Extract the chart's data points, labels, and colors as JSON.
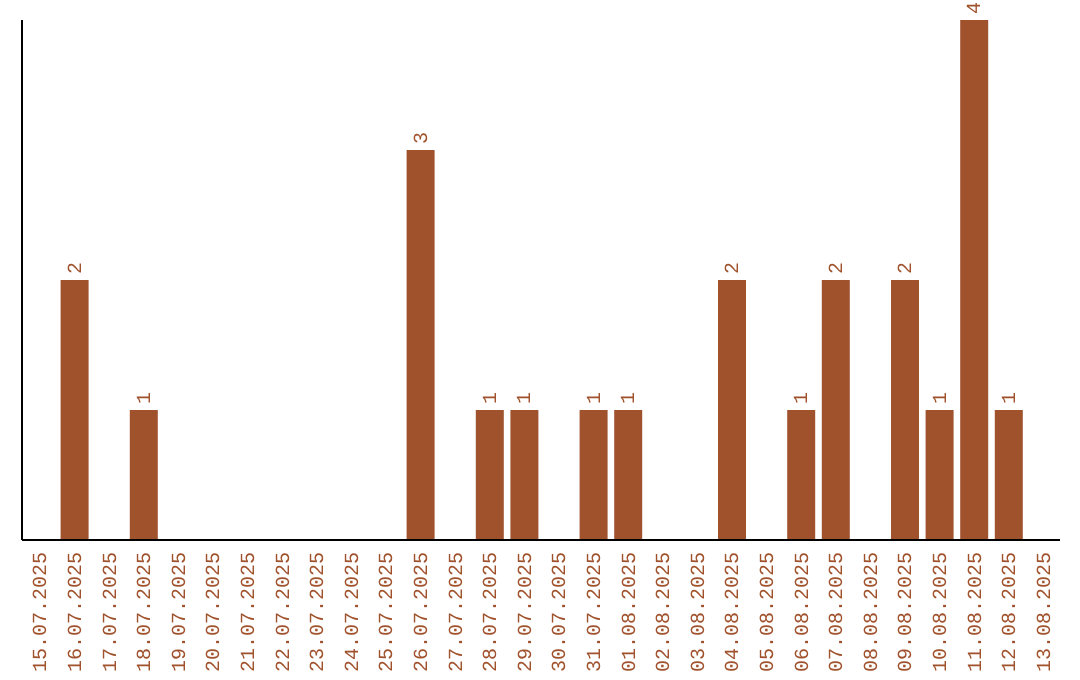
{
  "chart_data": {
    "type": "bar",
    "categories": [
      "15.07.2025",
      "16.07.2025",
      "17.07.2025",
      "18.07.2025",
      "19.07.2025",
      "20.07.2025",
      "21.07.2025",
      "22.07.2025",
      "23.07.2025",
      "24.07.2025",
      "25.07.2025",
      "26.07.2025",
      "27.07.2025",
      "28.07.2025",
      "29.07.2025",
      "30.07.2025",
      "31.07.2025",
      "01.08.2025",
      "02.08.2025",
      "03.08.2025",
      "04.08.2025",
      "05.08.2025",
      "06.08.2025",
      "07.08.2025",
      "08.08.2025",
      "09.08.2025",
      "10.08.2025",
      "11.08.2025",
      "12.08.2025",
      "13.08.2025"
    ],
    "values": [
      0,
      2,
      0,
      1,
      0,
      0,
      0,
      0,
      0,
      0,
      0,
      3,
      0,
      1,
      1,
      0,
      1,
      1,
      0,
      0,
      2,
      0,
      1,
      2,
      0,
      2,
      1,
      4,
      1,
      0
    ],
    "value_labels": [
      null,
      "2",
      null,
      "1",
      null,
      null,
      null,
      null,
      null,
      null,
      null,
      "3",
      null,
      "1",
      "1",
      null,
      "1",
      "1",
      null,
      null,
      "2",
      null,
      "1",
      "2",
      null,
      "2",
      "1",
      "4",
      "1",
      null
    ],
    "color": "#a0522d",
    "ylim": [
      0,
      4
    ],
    "tick_labels": "x",
    "grid": false,
    "legend": false
  }
}
